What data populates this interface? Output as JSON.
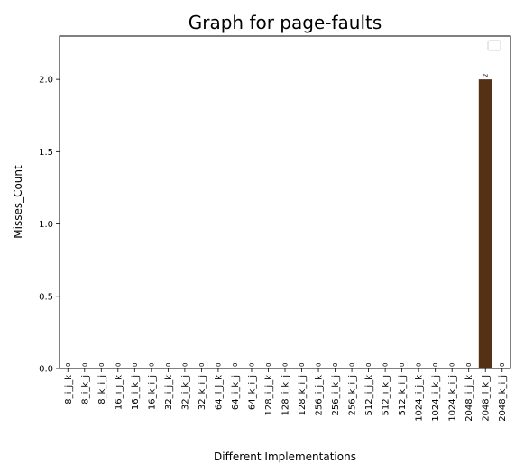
{
  "chart_data": {
    "type": "bar",
    "title": "Graph for page-faults",
    "xlabel": "Different Implementations",
    "ylabel": "Misses_Count",
    "ylim": [
      0,
      2.3
    ],
    "yticks": [
      "0.0",
      "0.5",
      "1.0",
      "1.5",
      "2.0"
    ],
    "categories": [
      "8_i_j_k",
      "8_i_k_j",
      "8_k_i_j",
      "16_i_j_k",
      "16_i_k_j",
      "16_k_i_j",
      "32_i_j_k",
      "32_i_k_j",
      "32_k_i_j",
      "64_i_j_k",
      "64_i_k_j",
      "64_k_i_j",
      "128_i_j_k",
      "128_i_k_j",
      "128_k_i_j",
      "256_i_j_k",
      "256_i_k_j",
      "256_k_i_j",
      "512_i_j_k",
      "512_i_k_j",
      "512_k_i_j",
      "1024_i_j_k",
      "1024_i_k_j",
      "1024_k_i_j",
      "2048_i_j_k",
      "2048_i_k_j",
      "2048_k_i_j"
    ],
    "values": [
      0,
      0,
      0,
      0,
      0,
      0,
      0,
      0,
      0,
      0,
      0,
      0,
      0,
      0,
      0,
      0,
      0,
      0,
      0,
      0,
      0,
      0,
      0,
      0,
      0,
      2,
      0
    ],
    "bar_labels": [
      "0",
      "0",
      "0",
      "0",
      "0",
      "0",
      "0",
      "0",
      "0",
      "0",
      "0",
      "0",
      "0",
      "0",
      "0",
      "0",
      "0",
      "0",
      "0",
      "0",
      "0",
      "0",
      "0",
      "0",
      "0",
      "2",
      "0"
    ],
    "bar_color": "#543014",
    "legend": "top-right",
    "grid": false
  }
}
